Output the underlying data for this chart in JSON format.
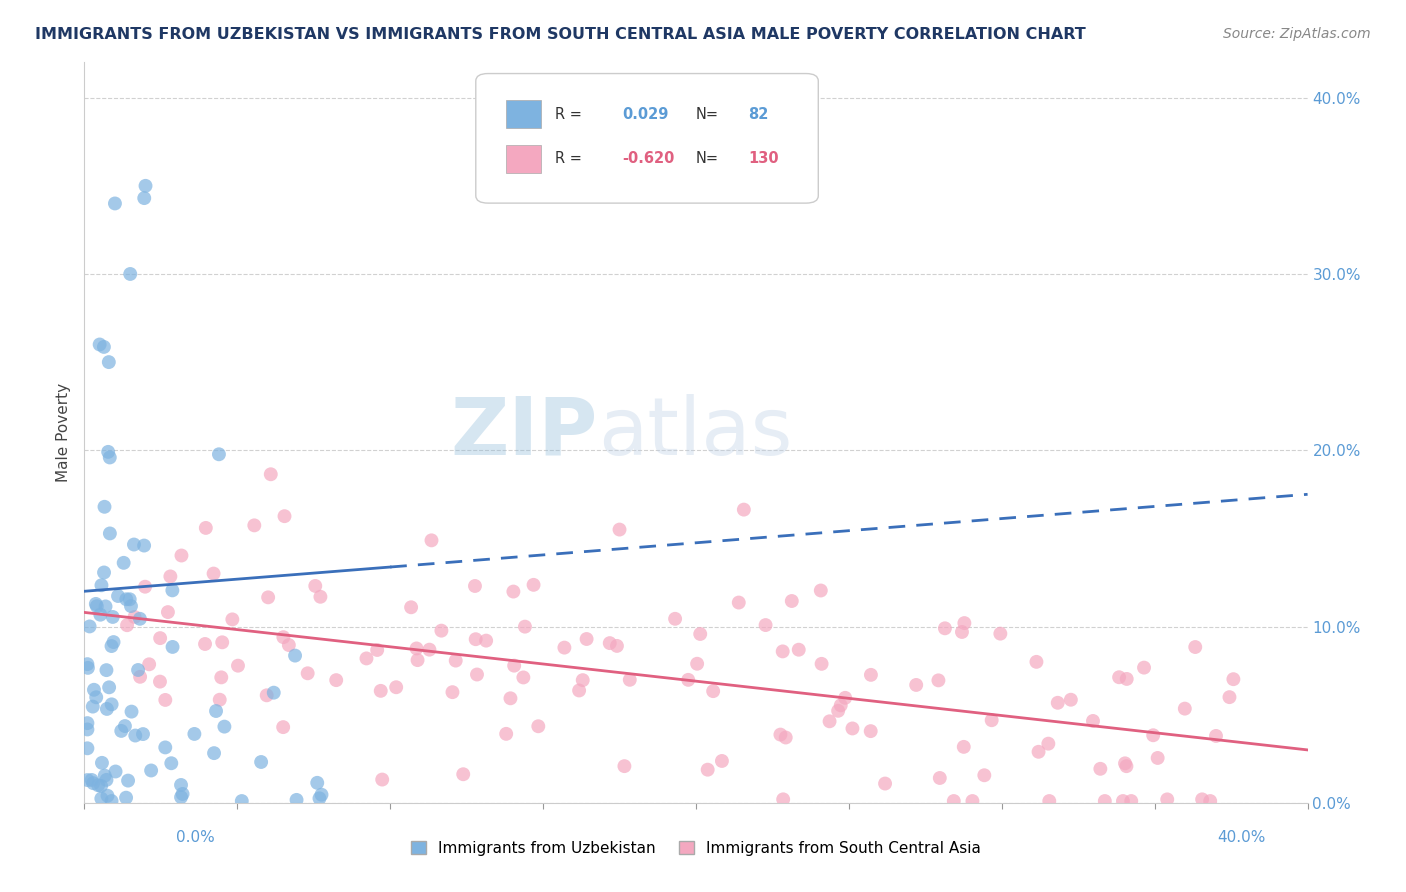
{
  "title": "IMMIGRANTS FROM UZBEKISTAN VS IMMIGRANTS FROM SOUTH CENTRAL ASIA MALE POVERTY CORRELATION CHART",
  "source": "Source: ZipAtlas.com",
  "ylabel": "Male Poverty",
  "xlim": [
    0.0,
    0.4
  ],
  "ylim": [
    0.0,
    0.42
  ],
  "legend_blue_label": "Immigrants from Uzbekistan",
  "legend_pink_label": "Immigrants from South Central Asia",
  "r_blue": 0.029,
  "n_blue": 82,
  "r_pink": -0.62,
  "n_pink": 130,
  "blue_color": "#7eb3e0",
  "pink_color": "#f4a8c0",
  "blue_line_color": "#3a6fba",
  "pink_line_color": "#e06080",
  "background_color": "#ffffff",
  "grid_color": "#cccccc",
  "title_color": "#1f3864",
  "source_color": "#888888",
  "right_tick_color": "#5b9bd5"
}
